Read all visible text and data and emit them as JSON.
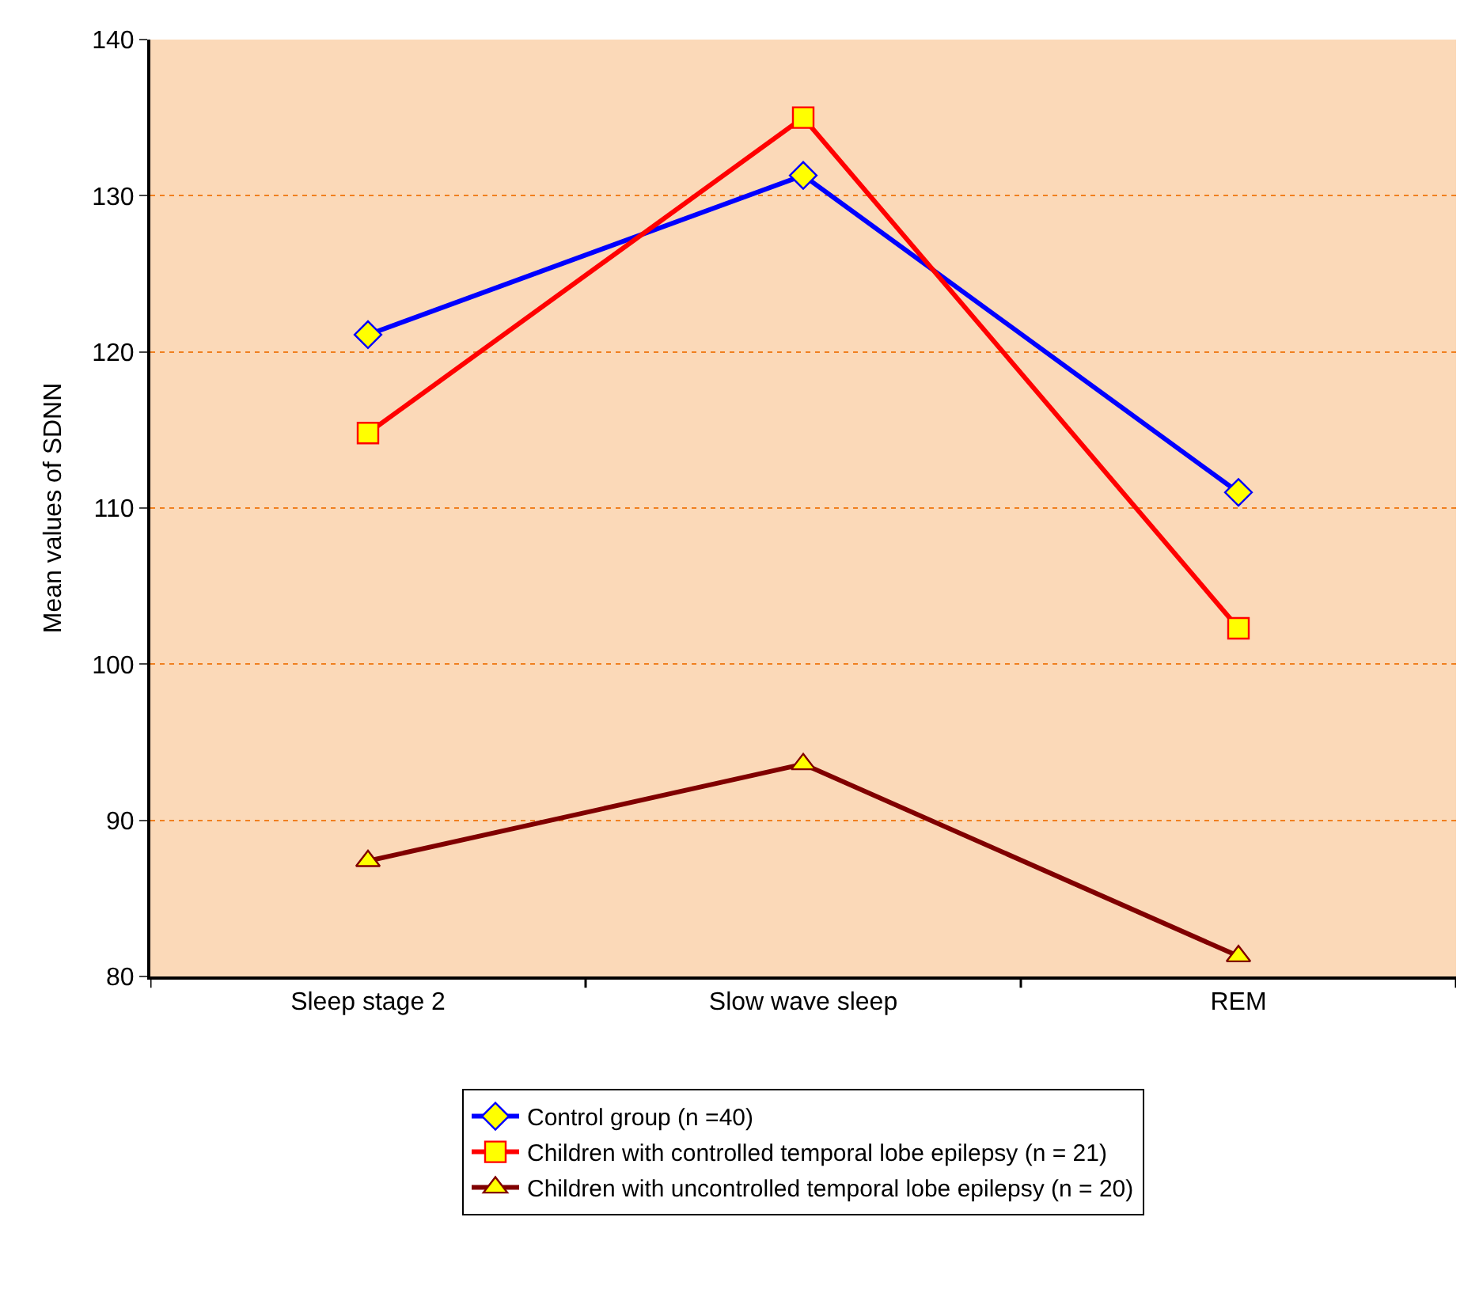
{
  "chart_data": {
    "type": "line",
    "ylabel": "Mean values of SDNN",
    "categories": [
      "Sleep stage 2",
      "Slow wave sleep",
      "REM"
    ],
    "series": [
      {
        "name": "Control group (n =40)",
        "color": "#0000ff",
        "marker": "diamond",
        "values": [
          121.1,
          131.3,
          111.0
        ]
      },
      {
        "name": "Children with controlled temporal lobe epilepsy (n = 21)",
        "color": "#ff0000",
        "marker": "square",
        "values": [
          114.8,
          135.0,
          102.3
        ]
      },
      {
        "name": "Children with uncontrolled temporal lobe epilepsy (n = 20)",
        "color": "#800000",
        "marker": "triangle",
        "values": [
          87.4,
          93.6,
          81.3
        ]
      }
    ],
    "ylim": [
      80,
      140
    ],
    "yticks": [
      80,
      90,
      100,
      110,
      120,
      130,
      140
    ],
    "grid": "y",
    "legend": "bottom",
    "line_style": "solid"
  }
}
